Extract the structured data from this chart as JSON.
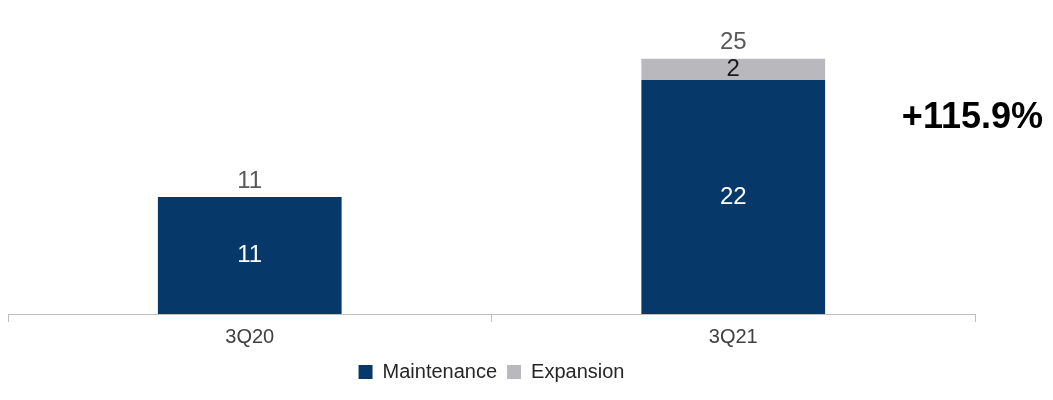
{
  "chart_data": {
    "type": "bar",
    "stacked": true,
    "categories": [
      "3Q20",
      "3Q21"
    ],
    "series": [
      {
        "name": "Maintenance",
        "color": "#06386a",
        "values": [
          11,
          22
        ]
      },
      {
        "name": "Expansion",
        "color": "#b8b8bd",
        "values": [
          null,
          2
        ]
      }
    ],
    "data_labels": true,
    "totals": [
      "11",
      "25"
    ],
    "annotations": [
      "+115.9%"
    ],
    "legend": "bottom",
    "tick_labels": "x"
  }
}
